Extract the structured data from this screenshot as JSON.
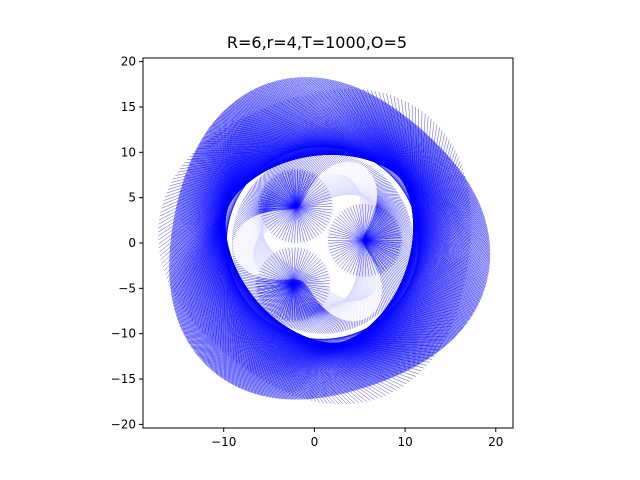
{
  "chart_data": {
    "type": "line",
    "title": "R=6,r=4,T=1000,O=5",
    "xlabel": "",
    "ylabel": "",
    "xlim": [
      -18.9,
      21.9
    ],
    "ylim": [
      -20.4,
      20.4
    ],
    "x_ticks": [
      -10,
      0,
      10,
      20
    ],
    "y_ticks": [
      -20,
      -15,
      -10,
      -5,
      0,
      5,
      10,
      15,
      20
    ],
    "x_tick_labels": [
      "−10",
      "0",
      "10",
      "20"
    ],
    "y_tick_labels": [
      "−20",
      "−15",
      "−10",
      "−5",
      "0",
      "5",
      "10",
      "15",
      "20"
    ],
    "grid": false,
    "legend": "none",
    "line_color": "#0000ff",
    "series": [
      {
        "curve": "hypocycloid chord envelope",
        "parameters": {
          "R": 6,
          "r": 4,
          "T": 1000,
          "O": 5
        },
        "x_range": [
          -17.5,
          19
        ],
        "y_range": [
          -18.5,
          18.5
        ]
      }
    ]
  }
}
